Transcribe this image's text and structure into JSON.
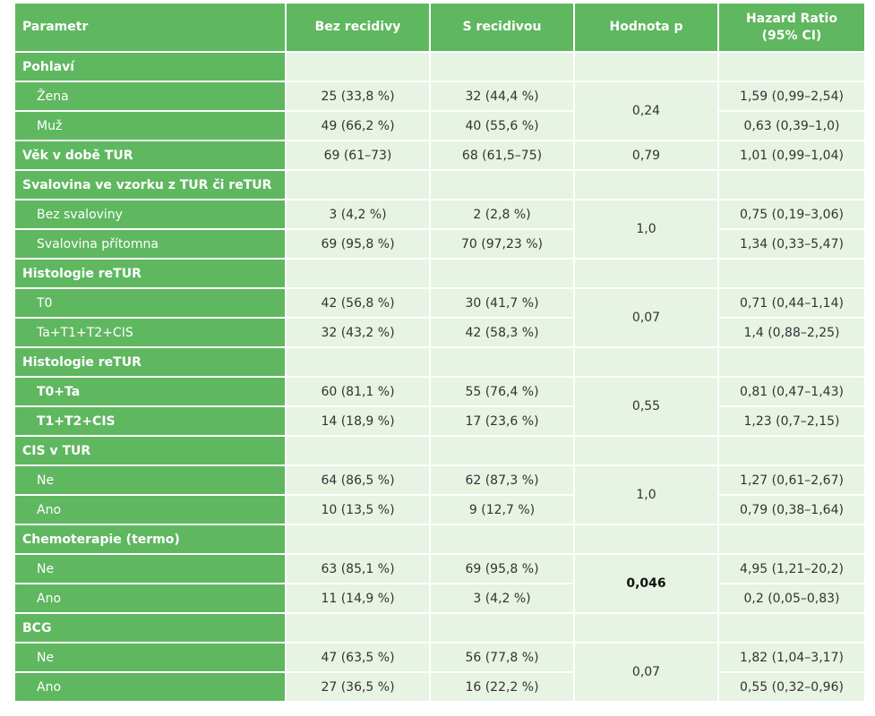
{
  "headers": {
    "parametr": "Parametr",
    "bez": "Bez recidivy",
    "s": "S recidivou",
    "hodnota": "Hodnota p",
    "hr_line1": "Hazard Ratio",
    "hr_line2": "(95% CI)"
  },
  "colors": {
    "header_green": "#5fb760",
    "cell_light": "#e7f3e3"
  },
  "rows": {
    "pohlavi": {
      "label": "Pohlaví"
    },
    "zena": {
      "label": "Žena",
      "bez": "25 (33,8 %)",
      "s": "32 (44,4 %)",
      "hr": "1,59 (0,99–2,54)"
    },
    "muz": {
      "label": "Muž",
      "bez": "49 (66,2 %)",
      "s": "40 (55,6 %)",
      "hr": "0,63 (0,39–1,0)"
    },
    "pohlavi_p": "0,24",
    "vek": {
      "label": "Věk v době TUR",
      "bez": "69 (61–73)",
      "s": "68 (61,5–75)",
      "p": "0,79",
      "hr": "1,01 (0,99–1,04)"
    },
    "svalovina": {
      "label": "Svalovina ve vzorku z TUR či reTUR"
    },
    "bez_sval": {
      "label": "Bez svaloviny",
      "bez": "3 (4,2 %)",
      "s": "2 (2,8 %)",
      "hr": "0,75 (0,19–3,06)"
    },
    "sval_pritomna": {
      "label": "Svalovina přítomna",
      "bez": "69 (95,8 %)",
      "s": "70 (97,23 %)",
      "hr": "1,34 (0,33–5,47)"
    },
    "svalovina_p": "1,0",
    "histologie1": {
      "label": "Histologie reTUR"
    },
    "t0": {
      "label": "T0",
      "bez": "42 (56,8 %)",
      "s": "30 (41,7 %)",
      "hr": "0,71 (0,44–1,14)"
    },
    "ta_t1": {
      "label": "Ta+T1+T2+CIS",
      "bez": "32 (43,2 %)",
      "s": "42 (58,3 %)",
      "hr": "1,4 (0,88–2,25)"
    },
    "histologie1_p": "0,07",
    "histologie2": {
      "label": "Histologie reTUR"
    },
    "t0ta": {
      "label": "T0+Ta",
      "bez": "60 (81,1 %)",
      "s": "55 (76,4 %)",
      "hr": "0,81 (0,47–1,43)"
    },
    "t1t2cis": {
      "label": "T1+T2+CIS",
      "bez": "14 (18,9 %)",
      "s": "17 (23,6 %)",
      "hr": "1,23 (0,7–2,15)"
    },
    "histologie2_p": "0,55",
    "cis": {
      "label": "CIS v TUR"
    },
    "cis_ne": {
      "label": "Ne",
      "bez": "64 (86,5 %)",
      "s": "62 (87,3 %)",
      "hr": "1,27 (0,61–2,67)"
    },
    "cis_ano": {
      "label": "Ano",
      "bez": "10 (13,5 %)",
      "s": "9 (12,7 %)",
      "hr": "0,79 (0,38–1,64)"
    },
    "cis_p": "1,0",
    "chemo": {
      "label": "Chemoterapie (termo)"
    },
    "chemo_ne": {
      "label": "Ne",
      "bez": "63 (85,1 %)",
      "s": "69 (95,8 %)",
      "hr": "4,95 (1,21–20,2)"
    },
    "chemo_ano": {
      "label": "Ano",
      "bez": "11 (14,9 %)",
      "s": "3 (4,2 %)",
      "hr": "0,2 (0,05–0,83)"
    },
    "chemo_p": "0,046",
    "bcg": {
      "label": "BCG"
    },
    "bcg_ne": {
      "label": "Ne",
      "bez": "47 (63,5 %)",
      "s": "56 (77,8 %)",
      "hr": "1,82 (1,04–3,17)"
    },
    "bcg_ano": {
      "label": "Ano",
      "bez": "27 (36,5 %)",
      "s": "16 (22,2 %)",
      "hr": "0,55 (0,32–0,96)"
    },
    "bcg_p": "0,07"
  }
}
